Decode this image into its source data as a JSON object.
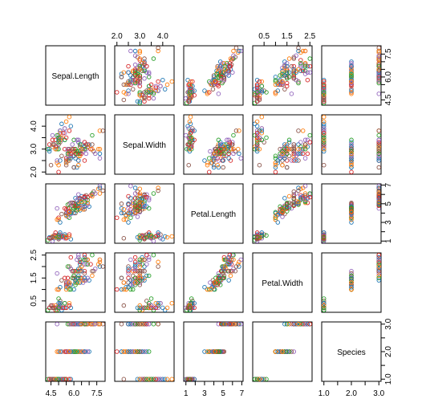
{
  "chart_data": {
    "type": "scatter",
    "title": "",
    "layout": "scatterplot-matrix",
    "variables": [
      "Sepal.Length",
      "Sepal.Width",
      "Petal.Length",
      "Petal.Width",
      "Species"
    ],
    "ranges": {
      "Sepal.Length": [
        4.3,
        7.9
      ],
      "Sepal.Width": [
        2.0,
        4.4
      ],
      "Petal.Length": [
        1.0,
        6.9
      ],
      "Petal.Width": [
        0.1,
        2.5
      ],
      "Species": [
        1,
        3
      ]
    },
    "ticks": {
      "Sepal.Length": [
        "4.5",
        "6.0",
        "7.5"
      ],
      "Sepal.Width": [
        "2.0",
        "3.0",
        "4.0"
      ],
      "Petal.Length": [
        "1",
        "3",
        "5",
        "7"
      ],
      "Petal.Width": [
        "0.5",
        "1.5",
        "2.5"
      ],
      "Species": [
        "1.0",
        "2.0",
        "3.0"
      ]
    },
    "minor_ticks": {
      "Sepal.Length": [
        5.0,
        5.5,
        6.5,
        7.0
      ],
      "Sepal.Width": [
        2.5,
        3.5
      ],
      "Petal.Length": [
        2,
        4,
        6
      ],
      "Petal.Width": [
        1.0,
        2.0
      ],
      "Species": [
        1.5,
        2.5
      ]
    },
    "point_colors": [
      "#d62728",
      "#2ca02c",
      "#1f77b4",
      "#ff7f0e",
      "#9467bd",
      "#8c564b"
    ],
    "series": [
      {
        "species_code": 1,
        "points": [
          [
            5.1,
            3.5,
            1.4,
            0.2
          ],
          [
            4.9,
            3.0,
            1.4,
            0.2
          ],
          [
            4.7,
            3.2,
            1.3,
            0.2
          ],
          [
            4.6,
            3.1,
            1.5,
            0.2
          ],
          [
            5.0,
            3.6,
            1.4,
            0.2
          ],
          [
            5.4,
            3.9,
            1.7,
            0.4
          ],
          [
            4.6,
            3.4,
            1.4,
            0.3
          ],
          [
            5.0,
            3.4,
            1.5,
            0.2
          ],
          [
            4.4,
            2.9,
            1.4,
            0.2
          ],
          [
            4.9,
            3.1,
            1.5,
            0.1
          ],
          [
            5.4,
            3.7,
            1.5,
            0.2
          ],
          [
            4.8,
            3.4,
            1.6,
            0.2
          ],
          [
            4.8,
            3.0,
            1.4,
            0.1
          ],
          [
            4.3,
            3.0,
            1.1,
            0.1
          ],
          [
            5.8,
            4.0,
            1.2,
            0.2
          ],
          [
            5.7,
            4.4,
            1.5,
            0.4
          ],
          [
            5.4,
            3.9,
            1.3,
            0.4
          ],
          [
            5.1,
            3.5,
            1.4,
            0.3
          ],
          [
            5.7,
            3.8,
            1.7,
            0.3
          ],
          [
            5.1,
            3.8,
            1.5,
            0.3
          ],
          [
            5.4,
            3.4,
            1.7,
            0.2
          ],
          [
            5.1,
            3.7,
            1.5,
            0.4
          ],
          [
            4.6,
            3.6,
            1.0,
            0.2
          ],
          [
            5.1,
            3.3,
            1.7,
            0.5
          ],
          [
            4.8,
            3.4,
            1.9,
            0.2
          ],
          [
            5.0,
            3.0,
            1.6,
            0.2
          ],
          [
            5.0,
            3.4,
            1.6,
            0.4
          ],
          [
            5.2,
            3.5,
            1.5,
            0.2
          ],
          [
            5.2,
            3.4,
            1.4,
            0.2
          ],
          [
            4.7,
            3.2,
            1.6,
            0.2
          ],
          [
            4.8,
            3.1,
            1.6,
            0.2
          ],
          [
            5.4,
            3.4,
            1.5,
            0.4
          ],
          [
            5.2,
            4.1,
            1.5,
            0.1
          ],
          [
            5.5,
            4.2,
            1.4,
            0.2
          ],
          [
            4.9,
            3.1,
            1.5,
            0.2
          ],
          [
            5.0,
            3.2,
            1.2,
            0.2
          ],
          [
            5.5,
            3.5,
            1.3,
            0.2
          ],
          [
            4.9,
            3.6,
            1.4,
            0.1
          ],
          [
            4.4,
            3.0,
            1.3,
            0.2
          ],
          [
            5.1,
            3.4,
            1.5,
            0.2
          ],
          [
            5.0,
            3.5,
            1.3,
            0.3
          ],
          [
            4.5,
            2.3,
            1.3,
            0.3
          ],
          [
            4.4,
            3.2,
            1.3,
            0.2
          ],
          [
            5.0,
            3.5,
            1.6,
            0.6
          ],
          [
            5.1,
            3.8,
            1.9,
            0.4
          ],
          [
            4.8,
            3.0,
            1.4,
            0.3
          ],
          [
            5.1,
            3.8,
            1.6,
            0.2
          ],
          [
            4.6,
            3.2,
            1.4,
            0.2
          ],
          [
            5.3,
            3.7,
            1.5,
            0.2
          ],
          [
            5.0,
            3.3,
            1.4,
            0.2
          ]
        ]
      },
      {
        "species_code": 2,
        "points": [
          [
            7.0,
            3.2,
            4.7,
            1.4
          ],
          [
            6.4,
            3.2,
            4.5,
            1.5
          ],
          [
            6.9,
            3.1,
            4.9,
            1.5
          ],
          [
            5.5,
            2.3,
            4.0,
            1.3
          ],
          [
            6.5,
            2.8,
            4.6,
            1.5
          ],
          [
            5.7,
            2.8,
            4.5,
            1.3
          ],
          [
            6.3,
            3.3,
            4.7,
            1.6
          ],
          [
            4.9,
            2.4,
            3.3,
            1.0
          ],
          [
            6.6,
            2.9,
            4.6,
            1.3
          ],
          [
            5.2,
            2.7,
            3.9,
            1.4
          ],
          [
            5.0,
            2.0,
            3.5,
            1.0
          ],
          [
            5.9,
            3.0,
            4.2,
            1.5
          ],
          [
            6.0,
            2.2,
            4.0,
            1.0
          ],
          [
            6.1,
            2.9,
            4.7,
            1.4
          ],
          [
            5.6,
            2.9,
            3.6,
            1.3
          ],
          [
            6.7,
            3.1,
            4.4,
            1.4
          ],
          [
            5.6,
            3.0,
            4.5,
            1.5
          ],
          [
            5.8,
            2.7,
            4.1,
            1.0
          ],
          [
            6.2,
            2.2,
            4.5,
            1.5
          ],
          [
            5.6,
            2.5,
            3.9,
            1.1
          ],
          [
            5.9,
            3.2,
            4.8,
            1.8
          ],
          [
            6.1,
            2.8,
            4.0,
            1.3
          ],
          [
            6.3,
            2.5,
            4.9,
            1.5
          ],
          [
            6.1,
            2.8,
            4.7,
            1.2
          ],
          [
            6.4,
            2.9,
            4.3,
            1.3
          ],
          [
            6.6,
            3.0,
            4.4,
            1.4
          ],
          [
            6.8,
            2.8,
            4.8,
            1.4
          ],
          [
            6.7,
            3.0,
            5.0,
            1.7
          ],
          [
            6.0,
            2.9,
            4.5,
            1.5
          ],
          [
            5.7,
            2.6,
            3.5,
            1.0
          ],
          [
            5.5,
            2.4,
            3.8,
            1.1
          ],
          [
            5.5,
            2.4,
            3.7,
            1.0
          ],
          [
            5.8,
            2.7,
            3.9,
            1.2
          ],
          [
            6.0,
            2.7,
            5.1,
            1.6
          ],
          [
            5.4,
            3.0,
            4.5,
            1.5
          ],
          [
            6.0,
            3.4,
            4.5,
            1.6
          ],
          [
            6.7,
            3.1,
            4.7,
            1.5
          ],
          [
            6.3,
            2.3,
            4.4,
            1.3
          ],
          [
            5.6,
            3.0,
            4.1,
            1.3
          ],
          [
            5.5,
            2.5,
            4.0,
            1.3
          ],
          [
            5.5,
            2.6,
            4.4,
            1.2
          ],
          [
            6.1,
            3.0,
            4.6,
            1.4
          ],
          [
            5.8,
            2.6,
            4.0,
            1.2
          ],
          [
            5.0,
            2.3,
            3.3,
            1.0
          ],
          [
            5.6,
            2.7,
            4.2,
            1.3
          ],
          [
            5.7,
            3.0,
            4.2,
            1.2
          ],
          [
            5.7,
            2.9,
            4.2,
            1.3
          ],
          [
            6.2,
            2.9,
            4.3,
            1.3
          ],
          [
            5.1,
            2.5,
            3.0,
            1.1
          ],
          [
            5.7,
            2.8,
            4.1,
            1.3
          ]
        ]
      },
      {
        "species_code": 3,
        "points": [
          [
            6.3,
            3.3,
            6.0,
            2.5
          ],
          [
            5.8,
            2.7,
            5.1,
            1.9
          ],
          [
            7.1,
            3.0,
            5.9,
            2.1
          ],
          [
            6.3,
            2.9,
            5.6,
            1.8
          ],
          [
            6.5,
            3.0,
            5.8,
            2.2
          ],
          [
            7.6,
            3.0,
            6.6,
            2.1
          ],
          [
            4.9,
            2.5,
            4.5,
            1.7
          ],
          [
            7.3,
            2.9,
            6.3,
            1.8
          ],
          [
            6.7,
            2.5,
            5.8,
            1.8
          ],
          [
            7.2,
            3.6,
            6.1,
            2.5
          ],
          [
            6.5,
            3.2,
            5.1,
            2.0
          ],
          [
            6.4,
            2.7,
            5.3,
            1.9
          ],
          [
            6.8,
            3.0,
            5.5,
            2.1
          ],
          [
            5.7,
            2.5,
            5.0,
            2.0
          ],
          [
            5.8,
            2.8,
            5.1,
            2.4
          ],
          [
            6.4,
            3.2,
            5.3,
            2.3
          ],
          [
            6.5,
            3.0,
            5.5,
            1.8
          ],
          [
            7.7,
            3.8,
            6.7,
            2.2
          ],
          [
            7.7,
            2.6,
            6.9,
            2.3
          ],
          [
            6.0,
            2.2,
            5.0,
            1.5
          ],
          [
            6.9,
            3.2,
            5.7,
            2.3
          ],
          [
            5.6,
            2.8,
            4.9,
            2.0
          ],
          [
            7.7,
            2.8,
            6.7,
            2.0
          ],
          [
            6.3,
            2.7,
            4.9,
            1.8
          ],
          [
            6.7,
            3.3,
            5.7,
            2.1
          ],
          [
            7.2,
            3.2,
            6.0,
            1.8
          ],
          [
            6.2,
            2.8,
            4.8,
            1.8
          ],
          [
            6.1,
            3.0,
            4.9,
            1.8
          ],
          [
            6.4,
            2.8,
            5.6,
            2.1
          ],
          [
            7.2,
            3.0,
            5.8,
            1.6
          ],
          [
            7.4,
            2.8,
            6.1,
            1.9
          ],
          [
            7.9,
            3.8,
            6.4,
            2.0
          ],
          [
            6.4,
            2.8,
            5.6,
            2.2
          ],
          [
            6.3,
            2.8,
            5.1,
            1.5
          ],
          [
            6.1,
            2.6,
            5.6,
            1.4
          ],
          [
            7.7,
            3.0,
            6.1,
            2.3
          ],
          [
            6.3,
            3.4,
            5.6,
            2.4
          ],
          [
            6.4,
            3.1,
            5.5,
            1.8
          ],
          [
            6.0,
            3.0,
            4.8,
            1.8
          ],
          [
            6.9,
            3.1,
            5.4,
            2.1
          ],
          [
            6.7,
            3.1,
            5.6,
            2.4
          ],
          [
            6.9,
            3.1,
            5.1,
            2.3
          ],
          [
            5.8,
            2.7,
            5.1,
            1.9
          ],
          [
            6.8,
            3.2,
            5.9,
            2.3
          ],
          [
            6.7,
            3.3,
            5.7,
            2.5
          ],
          [
            6.7,
            3.0,
            5.2,
            2.3
          ],
          [
            6.3,
            2.5,
            5.0,
            1.9
          ],
          [
            6.5,
            3.0,
            5.2,
            2.0
          ],
          [
            6.2,
            3.4,
            5.4,
            2.3
          ],
          [
            5.9,
            3.0,
            5.1,
            1.8
          ]
        ]
      }
    ],
    "grid": false,
    "legend": "none"
  }
}
